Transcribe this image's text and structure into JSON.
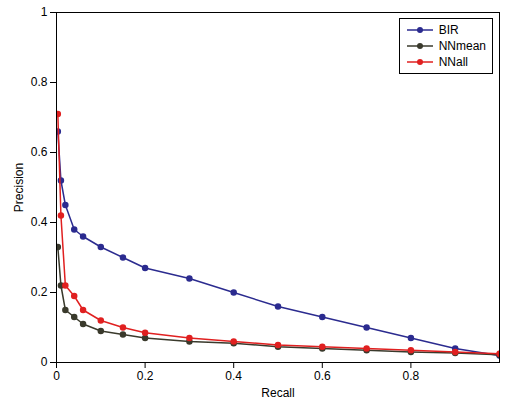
{
  "chart_data": {
    "type": "line",
    "x_label": "Recall",
    "y_label": "Precision",
    "x": [
      0.003,
      0.01,
      0.02,
      0.04,
      0.06,
      0.1,
      0.15,
      0.2,
      0.3,
      0.4,
      0.5,
      0.6,
      0.7,
      0.8,
      0.9,
      1.0
    ],
    "series": [
      {
        "name": "BIR",
        "color": "#2b2b8f",
        "marker": "circle",
        "values": [
          0.66,
          0.52,
          0.45,
          0.38,
          0.36,
          0.33,
          0.3,
          0.27,
          0.24,
          0.2,
          0.16,
          0.13,
          0.1,
          0.07,
          0.04,
          0.02
        ]
      },
      {
        "name": "NNmean",
        "color": "#3a3a2c",
        "marker": "circle",
        "values": [
          0.33,
          0.22,
          0.15,
          0.13,
          0.11,
          0.09,
          0.08,
          0.07,
          0.06,
          0.055,
          0.045,
          0.04,
          0.035,
          0.03,
          0.027,
          0.022
        ]
      },
      {
        "name": "NNall",
        "color": "#e02020",
        "marker": "circle",
        "values": [
          0.71,
          0.42,
          0.22,
          0.19,
          0.15,
          0.12,
          0.1,
          0.085,
          0.07,
          0.06,
          0.05,
          0.045,
          0.04,
          0.035,
          0.03,
          0.025
        ]
      }
    ],
    "xlim": [
      0,
      1
    ],
    "xticks": [
      0,
      0.2,
      0.4,
      0.6,
      0.8
    ],
    "ylim": [
      0,
      1
    ],
    "yticks": [
      0,
      0.2,
      0.4,
      0.6,
      0.8,
      1
    ],
    "grid": false,
    "legend": "top-right"
  }
}
